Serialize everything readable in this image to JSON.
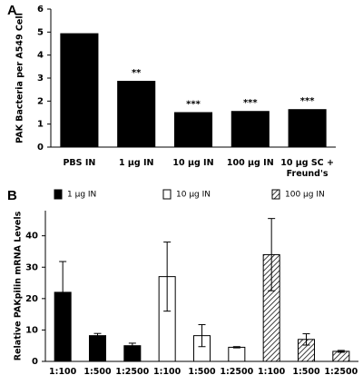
{
  "chart_data": [
    {
      "type": "bar",
      "panel_label": "A",
      "ylabel": "PAK Bacteria per A549 Cell",
      "categories": [
        "PBS IN",
        "1 µg IN",
        "10 µg IN",
        "100 µg IN",
        "10 µg SC + Freund's"
      ],
      "values": [
        4.95,
        2.88,
        1.52,
        1.57,
        1.65
      ],
      "color": "#000000",
      "annotations": [
        null,
        "**",
        "***",
        "***",
        "***"
      ],
      "ylim": [
        0,
        6
      ],
      "yticks": [
        0,
        1,
        2,
        3,
        4,
        5,
        6
      ]
    },
    {
      "type": "grouped_bar",
      "panel_label": "B",
      "ylabel": "Relative PAKpilin mRNA Levels",
      "categories": [
        "1:100",
        "1:500",
        "1:2500",
        "1:100",
        "1:500",
        "1:2500",
        "1:100",
        "1:500",
        "1:2500"
      ],
      "series": [
        {
          "name": "1 µg IN",
          "color": "#000000",
          "values": [
            22,
            8.2,
            5,
            null,
            null,
            null,
            null,
            null,
            null
          ],
          "errors": [
            9.8,
            0.7,
            0.8,
            null,
            null,
            null,
            null,
            null,
            null
          ]
        },
        {
          "name": "10 µg IN",
          "color": "#ffffff",
          "values": [
            null,
            null,
            null,
            27,
            8.2,
            4.5,
            null,
            null,
            null
          ],
          "errors": [
            null,
            null,
            null,
            11,
            3.5,
            0.2,
            null,
            null,
            null
          ]
        },
        {
          "name": "100 µg IN",
          "color": "#ffffff",
          "pattern": "hatch",
          "values": [
            null,
            null,
            null,
            null,
            null,
            null,
            34,
            7,
            3.2
          ],
          "errors": [
            null,
            null,
            null,
            null,
            null,
            null,
            11.5,
            1.8,
            0.3
          ]
        }
      ],
      "ylim": [
        0,
        48
      ],
      "yticks": [
        0,
        10,
        20,
        30,
        40
      ]
    }
  ]
}
